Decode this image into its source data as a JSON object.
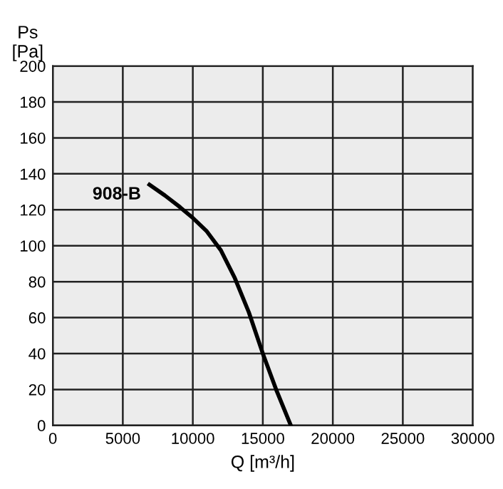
{
  "chart_data": {
    "type": "line",
    "xlabel": "Q [m³/h]",
    "ylabel": "Ps\n[Pa]",
    "series": [
      {
        "name": "908-B",
        "color": "#000000",
        "x": [
          6900,
          8000,
          9000,
          10000,
          11000,
          12000,
          13000,
          14000,
          15000,
          16000,
          17000
        ],
        "values": [
          134,
          128,
          122,
          115.5,
          108,
          97.5,
          82,
          63,
          40,
          19,
          0
        ]
      }
    ],
    "xlim": [
      0,
      30000
    ],
    "ylim": [
      0,
      200
    ],
    "xticks": [
      0,
      5000,
      10000,
      15000,
      20000,
      25000,
      30000
    ],
    "yticks": [
      0,
      20,
      40,
      60,
      80,
      100,
      120,
      140,
      160,
      180,
      200
    ],
    "grid": true,
    "marker": "none",
    "line_style": "solid"
  }
}
